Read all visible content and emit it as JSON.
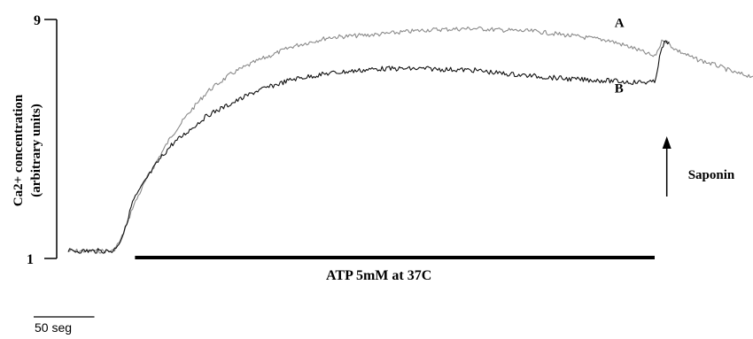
{
  "chart_data": {
    "type": "line",
    "ylabel_line1": "Ca2+ concentration",
    "ylabel_line2": "(arbitrary units)",
    "y_ticks": [
      "9",
      "1"
    ],
    "ylim": [
      1,
      9
    ],
    "x_unit": "seg",
    "xlim": [
      -55,
      509
    ],
    "scale_bar": {
      "length": 50,
      "label": "50 seg"
    },
    "series": [
      {
        "name": "A",
        "color": "#8a8a8a",
        "x": [
          -55,
          -35,
          -18,
          -12,
          -8,
          -2,
          10,
          20,
          30,
          45,
          60,
          80,
          100,
          130,
          160,
          200,
          240,
          280,
          300,
          330,
          360,
          390,
          410,
          428,
          435,
          445,
          460,
          480,
          495,
          509
        ],
        "y": [
          1.25,
          1.25,
          1.25,
          1.6,
          2.0,
          2.7,
          3.7,
          4.4,
          5.1,
          5.9,
          6.6,
          7.2,
          7.6,
          8.1,
          8.4,
          8.5,
          8.65,
          8.7,
          8.65,
          8.6,
          8.45,
          8.3,
          8.05,
          7.75,
          8.35,
          8.0,
          7.7,
          7.45,
          7.2,
          7.1
        ]
      },
      {
        "name": "B",
        "color": "#111111",
        "x": [
          -55,
          -35,
          -18,
          -12,
          -8,
          -2,
          10,
          20,
          30,
          45,
          60,
          80,
          100,
          130,
          160,
          200,
          240,
          280,
          300,
          330,
          360,
          390,
          410,
          428,
          430,
          433,
          436,
          440
        ],
        "y": [
          1.25,
          1.25,
          1.25,
          1.6,
          2.0,
          2.9,
          3.7,
          4.3,
          4.8,
          5.3,
          5.8,
          6.2,
          6.6,
          7.0,
          7.2,
          7.35,
          7.35,
          7.3,
          7.2,
          7.1,
          7.0,
          6.95,
          6.9,
          6.9,
          7.3,
          7.9,
          8.2,
          8.25
        ]
      }
    ],
    "annotations": {
      "stimulus_label": "ATP 5mM at 37C",
      "stimulus_range": [
        0,
        428
      ],
      "arrow_label": "Saponin",
      "arrow_at_x": 438
    }
  }
}
